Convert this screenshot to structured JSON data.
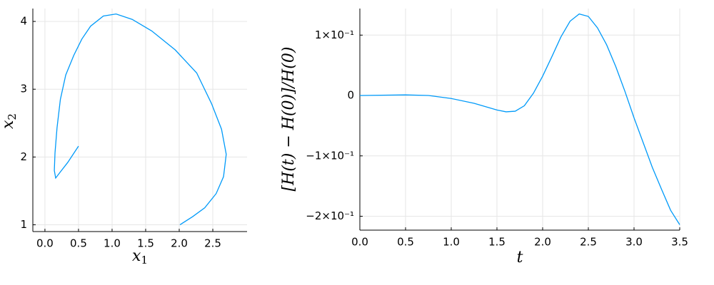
{
  "chart_data": [
    {
      "type": "line",
      "xlabel": {
        "text": "x",
        "subscript": "1"
      },
      "ylabel": {
        "text": "x",
        "subscript": "2"
      },
      "x": [
        0.5,
        0.34,
        0.23,
        0.16,
        0.14,
        0.15,
        0.18,
        0.23,
        0.31,
        0.43,
        0.55,
        0.68,
        0.87,
        1.06,
        1.3,
        1.59,
        1.94,
        2.26,
        2.48,
        2.63,
        2.7,
        2.66,
        2.55,
        2.38,
        2.2,
        2.01
      ],
      "series": [
        {
          "color": "#009af9",
          "values": [
            2.16,
            1.92,
            1.78,
            1.69,
            1.8,
            2.06,
            2.43,
            2.85,
            3.21,
            3.5,
            3.74,
            3.93,
            4.08,
            4.11,
            4.03,
            3.86,
            3.58,
            3.24,
            2.79,
            2.41,
            2.04,
            1.71,
            1.46,
            1.25,
            1.12,
            1.0
          ]
        }
      ],
      "xlim": [
        -0.18,
        3.01
      ],
      "ylim": [
        0.9,
        4.19
      ],
      "xticks": [
        {
          "value": 0,
          "label": "0.0"
        },
        0.5,
        {
          "value": 1,
          "label": "1.0"
        },
        1.5,
        {
          "value": 2,
          "label": "2.0"
        },
        2.5
      ],
      "yticks": [
        1,
        2,
        3,
        4
      ],
      "grid": true
    },
    {
      "type": "line",
      "xlabel": {
        "text": "t"
      },
      "ylabel": {
        "text": "[H(t) − H(0)]/H(0)"
      },
      "x": [
        0,
        0.5,
        0.75,
        1.0,
        1.25,
        1.5,
        1.6,
        1.7,
        1.8,
        1.9,
        2.0,
        2.1,
        2.2,
        2.3,
        2.4,
        2.5,
        2.6,
        2.7,
        2.8,
        2.9,
        3.0,
        3.1,
        3.2,
        3.3,
        3.4,
        3.5
      ],
      "series": [
        {
          "color": "#009af9",
          "values": [
            0,
            0.001,
            0,
            -0.005,
            -0.013,
            -0.024,
            -0.027,
            -0.026,
            -0.017,
            0.004,
            0.032,
            0.064,
            0.097,
            0.123,
            0.135,
            0.131,
            0.112,
            0.084,
            0.048,
            0.007,
            -0.037,
            -0.078,
            -0.119,
            -0.155,
            -0.19,
            -0.214
          ]
        }
      ],
      "xlim": [
        0,
        3.5
      ],
      "ylim": [
        -0.223,
        0.144
      ],
      "xticks": [
        {
          "value": 0,
          "label": "0.0"
        },
        0.5,
        {
          "value": 1,
          "label": "1.0"
        },
        1.5,
        {
          "value": 2,
          "label": "2.0"
        },
        2.5,
        {
          "value": 3,
          "label": "3.0"
        },
        3.5
      ],
      "yticks": [
        {
          "value": -0.2,
          "label": "−2×10⁻¹"
        },
        {
          "value": -0.1,
          "label": "−1×10⁻¹"
        },
        0,
        {
          "value": 0.1,
          "label": "1×10⁻¹"
        }
      ],
      "grid": true
    }
  ]
}
